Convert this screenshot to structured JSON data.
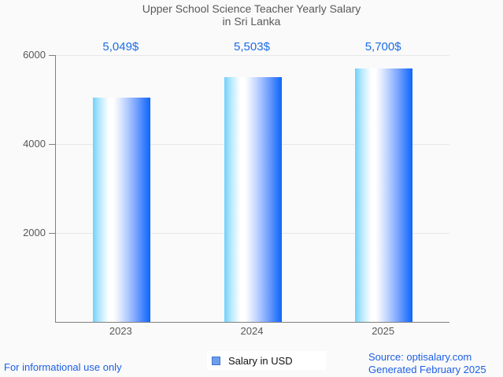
{
  "title": {
    "line1": "Upper School Science Teacher Yearly Salary",
    "line2": "in Sri Lanka"
  },
  "chart_data": {
    "type": "bar",
    "title": "Upper School Science Teacher Yearly Salary in Sri Lanka",
    "categories": [
      "2023",
      "2024",
      "2025"
    ],
    "series": [
      {
        "name": "Salary in USD",
        "values": [
          5049,
          5503,
          5700
        ]
      }
    ],
    "value_labels": [
      "5,049$",
      "5,503$",
      "5,700$"
    ],
    "xlabel": "",
    "ylabel": "",
    "ylim": [
      0,
      6000
    ],
    "yticks": [
      2000,
      4000,
      6000
    ],
    "grid": true,
    "legend_position": "bottom-center"
  },
  "legend": {
    "label": "Salary in USD"
  },
  "footer": {
    "left": "For informational use only",
    "source_line": "Source: optisalary.com",
    "generated_line": "Generated February 2025"
  },
  "colors": {
    "background": "#fafafa",
    "title_text": "#595959",
    "axis": "#808080",
    "grid": "#e7e7e7",
    "value_label_blue": "#1c6de6",
    "footer_blue": "#1d5fe6",
    "bar_gradient_left": "#70d1fc",
    "bar_gradient_mid": "#ffffff",
    "bar_gradient_right": "#0d66fb",
    "legend_marker_fill": "#6d9eeb",
    "legend_marker_border": "#4176cf"
  }
}
